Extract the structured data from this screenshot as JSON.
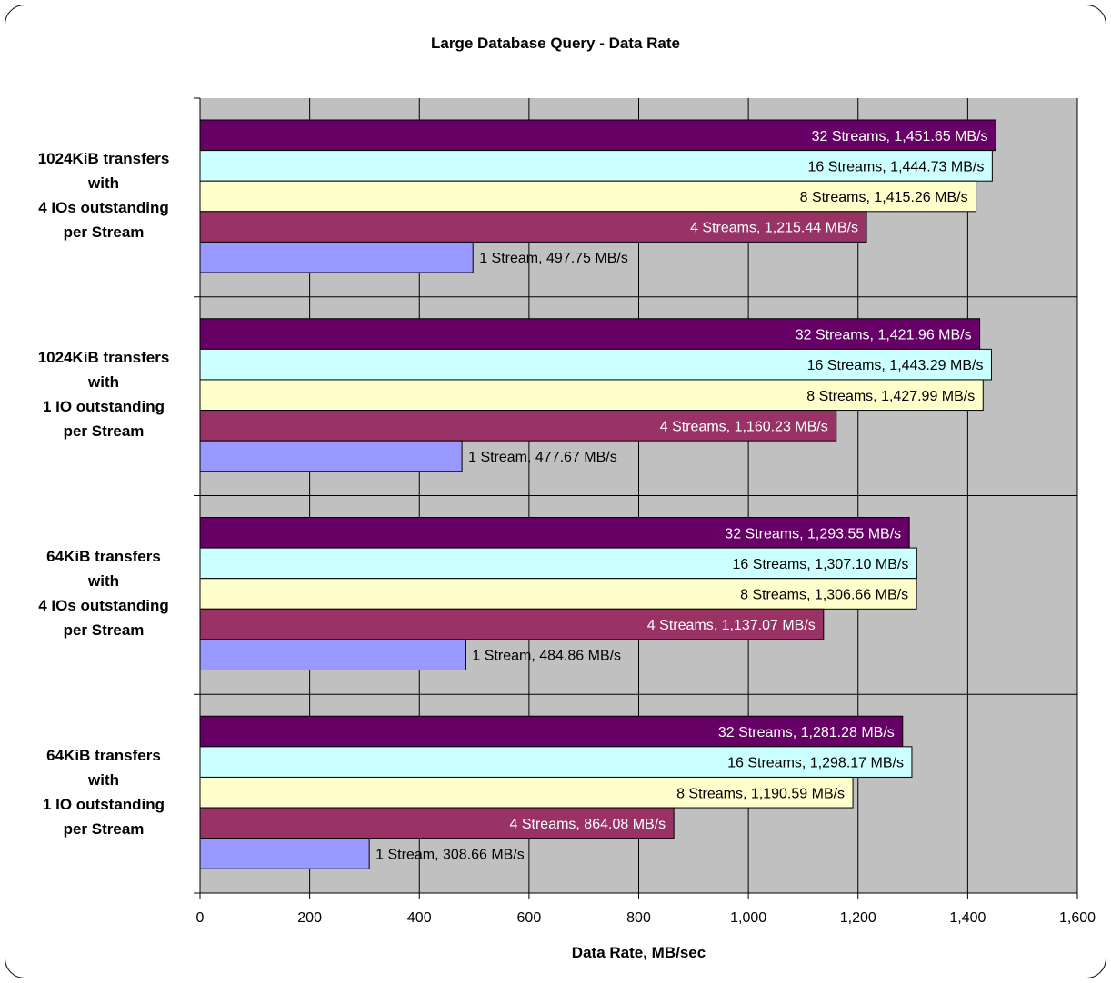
{
  "chart_data": {
    "type": "bar",
    "orientation": "horizontal",
    "title": "Large Database Query - Data Rate",
    "xlabel": "Data Rate, MB/sec",
    "ylabel": "",
    "xlim": [
      0,
      1600
    ],
    "xticks": [
      0,
      200,
      400,
      600,
      800,
      1000,
      1200,
      1400,
      1600
    ],
    "xtick_labels": [
      "0",
      "200",
      "400",
      "600",
      "800",
      "1,000",
      "1,200",
      "1,400",
      "1,600"
    ],
    "grid": true,
    "plot_background": "#c0c0c0",
    "categories": [
      [
        "1024KiB transfers",
        "with",
        "4 IOs outstanding",
        "per Stream"
      ],
      [
        "1024KiB transfers",
        "with",
        "1 IO outstanding",
        "per Stream"
      ],
      [
        "64KiB transfers",
        "with",
        "4 IOs outstanding",
        "per Stream"
      ],
      [
        "64KiB transfers",
        "with",
        "1 IO outstanding",
        "per Stream"
      ]
    ],
    "series": [
      {
        "name": "32 Streams",
        "color": "#660066",
        "label_color": "#ffffff",
        "values": [
          1451.65,
          1421.96,
          1293.55,
          1281.28
        ],
        "labels": [
          "32 Streams, 1,451.65  MB/s",
          "32 Streams, 1,421.96  MB/s",
          "32 Streams, 1,293.55  MB/s",
          "32 Streams, 1,281.28  MB/s"
        ]
      },
      {
        "name": "16 Streams",
        "color": "#ccffff",
        "label_color": "#000000",
        "values": [
          1444.73,
          1443.29,
          1307.1,
          1298.17
        ],
        "labels": [
          "16 Streams, 1,444.73  MB/s",
          "16 Streams, 1,443.29  MB/s",
          "16 Streams, 1,307.10  MB/s",
          "16 Streams, 1,298.17  MB/s"
        ]
      },
      {
        "name": "8 Streams",
        "color": "#ffffcc",
        "label_color": "#000000",
        "values": [
          1415.26,
          1427.99,
          1306.66,
          1190.59
        ],
        "labels": [
          "8 Streams, 1,415.26  MB/s",
          "8 Streams, 1,427.99  MB/s",
          "8 Streams, 1,306.66  MB/s",
          "8 Streams, 1,190.59  MB/s"
        ]
      },
      {
        "name": "4 Streams",
        "color": "#993366",
        "label_color": "#ffffff",
        "values": [
          1215.44,
          1160.23,
          1137.07,
          864.08
        ],
        "labels": [
          "4 Streams, 1,215.44  MB/s",
          "4 Streams, 1,160.23  MB/s",
          "4 Streams, 1,137.07  MB/s",
          "4 Streams, 864.08  MB/s"
        ]
      },
      {
        "name": "1 Stream",
        "color": "#9999ff",
        "label_color": "#000000",
        "values": [
          497.75,
          477.67,
          484.86,
          308.66
        ],
        "labels": [
          "1 Stream, 497.75  MB/s",
          "1 Stream, 477.67  MB/s",
          "1 Stream, 484.86  MB/s",
          "1 Stream, 308.66  MB/s"
        ]
      }
    ]
  }
}
